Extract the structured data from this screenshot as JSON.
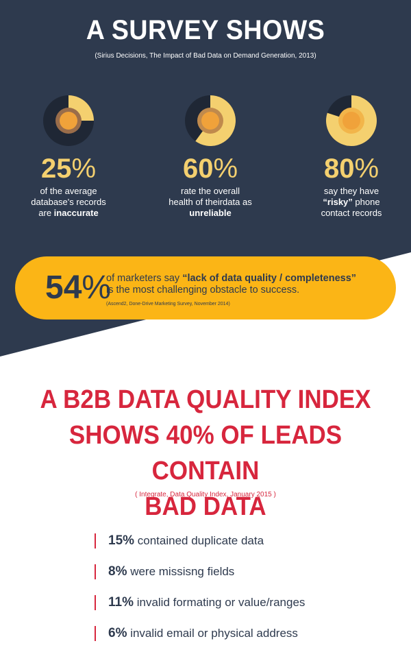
{
  "colors": {
    "navy": "#2e3a4e",
    "yellow": "#f4d06f",
    "orange_banner": "#fbb516",
    "red": "#d7263d"
  },
  "header": {
    "title": "A SURVEY SHOWS",
    "source": "(Sirius Decisions, The Impact of Bad Data on Demand Generation, 2013)"
  },
  "stats": [
    {
      "number": "25",
      "percent_sign": "%",
      "fill_fraction": 0.25,
      "line1": "of the average",
      "line2": "database's records",
      "line3_pre": "are ",
      "line3_bold": "inaccurate"
    },
    {
      "number": "60",
      "percent_sign": "%",
      "fill_fraction": 0.6,
      "line1": "rate the overall",
      "line2": "health of theirdata as",
      "line3_bold": "unreliable"
    },
    {
      "number": "80",
      "percent_sign": "%",
      "fill_fraction": 0.8,
      "line1": "say they have",
      "line2_bold": "“risky”",
      "line2_post": " phone",
      "line3": "contact records"
    }
  ],
  "banner": {
    "number": "54",
    "percent_sign": "%",
    "text_pre": "of marketers say ",
    "text_bold": "“lack of data quality / completeness”",
    "text_line2": "is the most challenging obstacle to success.",
    "source": "(Ascend2, Done-Drive Marketing Survey, November 2014)"
  },
  "headline": {
    "line1": "A B2B DATA QUALITY INDEX",
    "line2": "SHOWS 40% OF LEADS CONTAIN",
    "line3": "BAD DATA",
    "source": "( Integrate, Data Quality Index, January 2015 )"
  },
  "facts": [
    {
      "pct": "15%",
      "text": " contained duplicate data"
    },
    {
      "pct": "8%",
      "text": " were missisng fields"
    },
    {
      "pct": "11%",
      "text": " invalid formating or value/ranges"
    },
    {
      "pct": "6%",
      "text": " invalid email or physical address"
    }
  ]
}
